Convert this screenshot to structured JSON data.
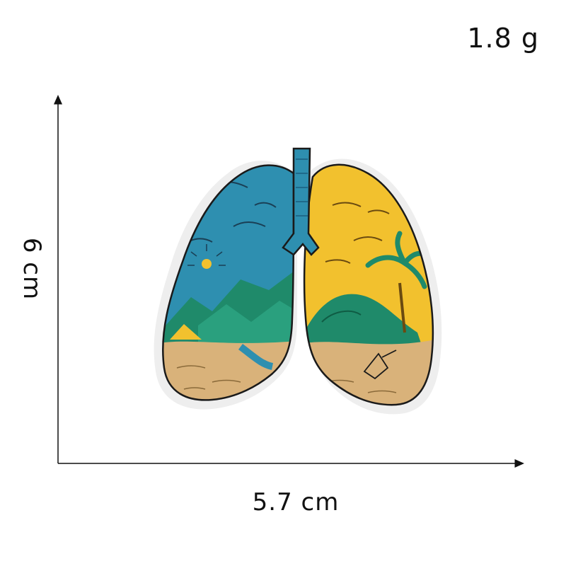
{
  "weight_label": "1.8 g",
  "width_label": "5.7 cm",
  "height_label": "6 cm",
  "product": {
    "icon": "lungs-embroidered-patch-icon",
    "colors": {
      "sky": "#2e8fb0",
      "sunset": "#f2c12e",
      "mountains": "#1f8a6a",
      "sand": "#d9b27a",
      "outline": "#1a1a1a"
    }
  }
}
